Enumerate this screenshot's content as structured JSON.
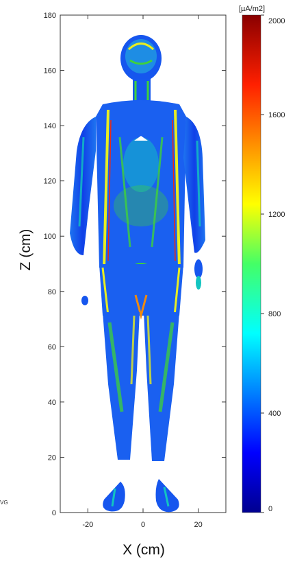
{
  "figure": {
    "x_axis_label": "X (cm)",
    "y_axis_label": "Z (cm)",
    "x_ticks": [
      "-20",
      "0",
      "20"
    ],
    "y_ticks": [
      "0",
      "20",
      "40",
      "60",
      "80",
      "100",
      "120",
      "140",
      "160",
      "180"
    ],
    "colorbar": {
      "unit": "[µA/m2]",
      "ticks": [
        "0",
        "400",
        "800",
        "1200",
        "1600",
        "2000"
      ],
      "range": [
        0,
        2000
      ]
    },
    "partial_text": "VG",
    "colors": {
      "background_field": "#0a2cd8",
      "body_low": "#1658f2",
      "mid": "#12c4c0",
      "green": "#3fd23a",
      "yellow": "#e8ee20",
      "high": "#ee2a10"
    }
  }
}
